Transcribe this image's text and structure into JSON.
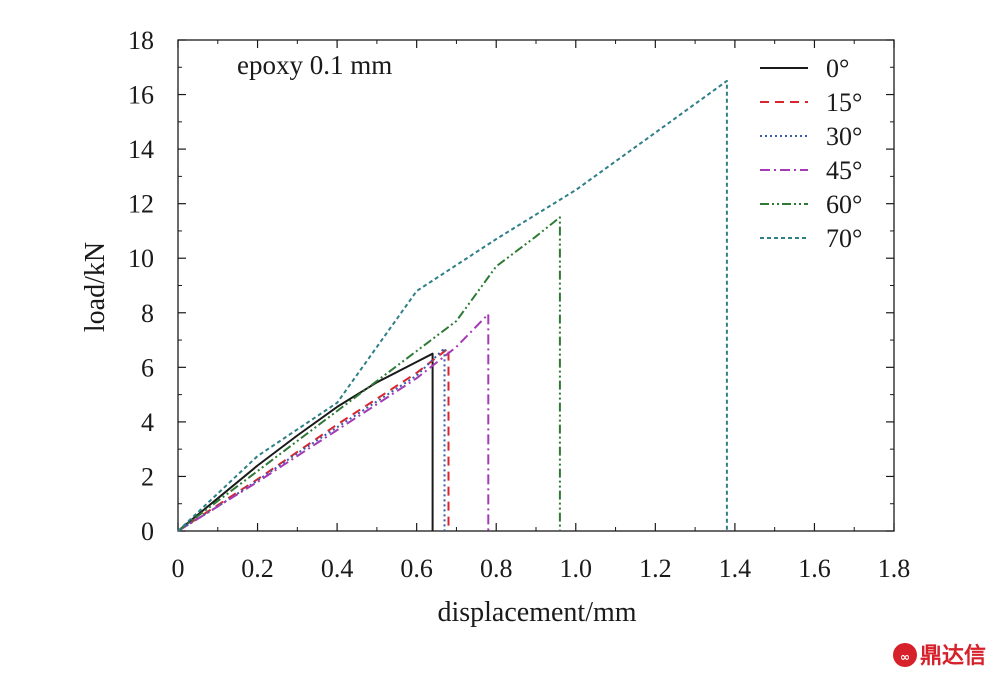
{
  "chart_data": {
    "type": "line",
    "title": "",
    "xlabel": "displacement/mm",
    "ylabel": "load/kN",
    "xlim": [
      0,
      1.8
    ],
    "ylim": [
      0,
      18
    ],
    "xticks": [
      0,
      0.2,
      0.4,
      0.6,
      0.8,
      1.0,
      1.2,
      1.4,
      1.6,
      1.8
    ],
    "xtick_labels": [
      "0",
      "0.2",
      "0.4",
      "0.6",
      "0.8",
      "1.0",
      "1.2",
      "1.4",
      "1.6",
      "1.8"
    ],
    "yticks": [
      0,
      2,
      4,
      6,
      8,
      10,
      12,
      14,
      16,
      18
    ],
    "ytick_labels": [
      "0",
      "2",
      "4",
      "6",
      "8",
      "10",
      "12",
      "14",
      "16",
      "18"
    ],
    "grid": false,
    "legend_position": "top-right",
    "annotation": "epoxy 0.1 mm",
    "series": [
      {
        "name": "0°",
        "color": "#1a1a1a",
        "style": "solid",
        "points": [
          [
            0,
            0
          ],
          [
            0.1,
            1.2
          ],
          [
            0.2,
            2.4
          ],
          [
            0.3,
            3.5
          ],
          [
            0.4,
            4.55
          ],
          [
            0.5,
            5.45
          ],
          [
            0.6,
            6.2
          ],
          [
            0.64,
            6.5
          ],
          [
            0.64,
            0
          ]
        ]
      },
      {
        "name": "15°",
        "color": "#d9262e",
        "style": "dashed",
        "points": [
          [
            0,
            0
          ],
          [
            0.1,
            0.95
          ],
          [
            0.2,
            1.9
          ],
          [
            0.3,
            2.9
          ],
          [
            0.4,
            3.9
          ],
          [
            0.5,
            4.85
          ],
          [
            0.6,
            5.8
          ],
          [
            0.68,
            6.7
          ],
          [
            0.68,
            0
          ]
        ]
      },
      {
        "name": "30°",
        "color": "#3a5ba8",
        "style": "dotted",
        "points": [
          [
            0,
            0
          ],
          [
            0.1,
            0.9
          ],
          [
            0.2,
            1.85
          ],
          [
            0.3,
            2.85
          ],
          [
            0.4,
            3.8
          ],
          [
            0.5,
            4.75
          ],
          [
            0.6,
            5.7
          ],
          [
            0.67,
            6.7
          ],
          [
            0.67,
            0
          ]
        ]
      },
      {
        "name": "45°",
        "color": "#a43ab6",
        "style": "dashdot",
        "points": [
          [
            0,
            0
          ],
          [
            0.1,
            0.9
          ],
          [
            0.2,
            1.8
          ],
          [
            0.3,
            2.75
          ],
          [
            0.4,
            3.7
          ],
          [
            0.5,
            4.65
          ],
          [
            0.6,
            5.6
          ],
          [
            0.7,
            6.75
          ],
          [
            0.78,
            7.95
          ],
          [
            0.78,
            0
          ]
        ]
      },
      {
        "name": "60°",
        "color": "#2e7a34",
        "style": "dashdotdot",
        "points": [
          [
            0,
            0
          ],
          [
            0.1,
            1.1
          ],
          [
            0.2,
            2.2
          ],
          [
            0.3,
            3.3
          ],
          [
            0.4,
            4.4
          ],
          [
            0.5,
            5.5
          ],
          [
            0.6,
            6.6
          ],
          [
            0.7,
            7.7
          ],
          [
            0.8,
            9.7
          ],
          [
            0.9,
            10.8
          ],
          [
            0.96,
            11.5
          ],
          [
            0.96,
            0
          ]
        ]
      },
      {
        "name": "70°",
        "color": "#2f7f86",
        "style": "shortdash",
        "points": [
          [
            0,
            0
          ],
          [
            0.2,
            2.75
          ],
          [
            0.4,
            4.7
          ],
          [
            0.6,
            8.8
          ],
          [
            0.8,
            10.7
          ],
          [
            1.0,
            12.5
          ],
          [
            1.2,
            14.6
          ],
          [
            1.38,
            16.5
          ],
          [
            1.38,
            0
          ]
        ]
      }
    ]
  },
  "watermark": {
    "text": "鼎达信"
  }
}
